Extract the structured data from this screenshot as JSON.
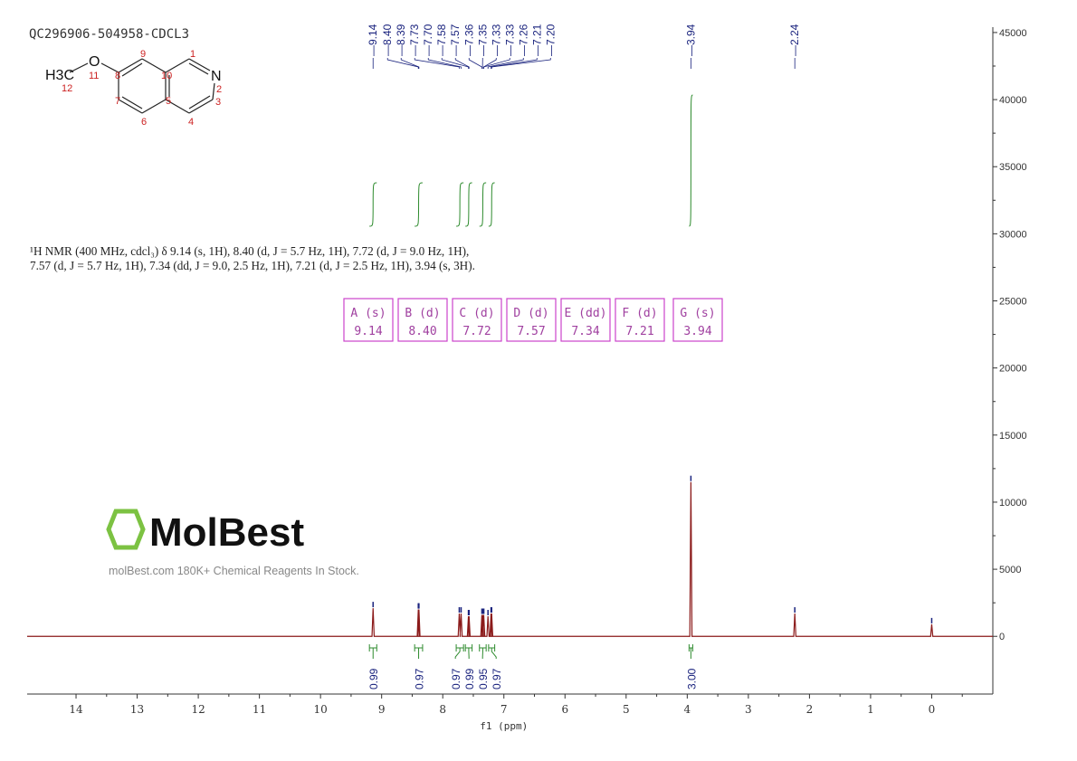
{
  "title": "QC296906-504958-CDCL3",
  "description": [
    "¹H NMR (400 MHz, cdcl₃) δ 9.14 (s, 1H), 8.40 (d, J = 5.7 Hz, 1H), 7.72 (d, J = 9.0 Hz, 1H),",
    "7.57 (d, J = 5.7 Hz, 1H), 7.34 (dd, J = 9.0, 2.5 Hz, 1H), 7.21 (d, J = 2.5 Hz, 1H), 3.94 (s, 3H)."
  ],
  "structure": {
    "atoms": [
      "H3C",
      "O",
      "N"
    ],
    "numbers": [
      "1",
      "2",
      "3",
      "4",
      "5",
      "6",
      "7",
      "8",
      "9",
      "10",
      "11",
      "12"
    ]
  },
  "watermark": {
    "logo_text": "MolBest",
    "tagline": "molBest.com 180K+ Chemical Reagents In Stock."
  },
  "colors": {
    "spectrum": "#8b1a1a",
    "peak_labels": "#1a237e",
    "integrals": "#2e8b2e",
    "multiplet_boxes": "#cc44cc",
    "axis": "#333333"
  },
  "chart_data": {
    "type": "line",
    "xlabel": "f1 (ppm)",
    "ylabel": "",
    "xlim": [
      14.8,
      -1.0
    ],
    "ylim": [
      -4300,
      45400
    ],
    "x_reversed": true,
    "x_ticks": [
      14,
      13,
      12,
      11,
      10,
      9,
      8,
      7,
      6,
      5,
      4,
      3,
      2,
      1,
      0
    ],
    "y_ticks": [
      0,
      5000,
      10000,
      15000,
      20000,
      25000,
      30000,
      35000,
      40000,
      45000
    ],
    "y_axis_side": "right",
    "grid": false,
    "peaks": [
      {
        "ppm": 9.14,
        "intensity": 2100
      },
      {
        "ppm": 8.4,
        "intensity": 2000
      },
      {
        "ppm": 8.39,
        "intensity": 2000
      },
      {
        "ppm": 7.73,
        "intensity": 1700
      },
      {
        "ppm": 7.7,
        "intensity": 1700
      },
      {
        "ppm": 7.58,
        "intensity": 1500
      },
      {
        "ppm": 7.57,
        "intensity": 1500
      },
      {
        "ppm": 7.36,
        "intensity": 1600
      },
      {
        "ppm": 7.35,
        "intensity": 1600
      },
      {
        "ppm": 7.33,
        "intensity": 1600
      },
      {
        "ppm": 7.33,
        "intensity": 1600
      },
      {
        "ppm": 7.26,
        "intensity": 1500
      },
      {
        "ppm": 7.21,
        "intensity": 1700
      },
      {
        "ppm": 7.2,
        "intensity": 1700
      },
      {
        "ppm": 3.94,
        "intensity": 11500
      },
      {
        "ppm": 2.24,
        "intensity": 1700
      },
      {
        "ppm": 0.0,
        "intensity": 900
      }
    ],
    "peak_labels": [
      "9.14",
      "8.40",
      "8.39",
      "7.73",
      "7.70",
      "7.58",
      "7.57",
      "7.36",
      "7.35",
      "7.33",
      "7.33",
      "7.26",
      "7.21",
      "7.20",
      "3.94",
      "2.24"
    ],
    "integrals": [
      {
        "from": 9.2,
        "to": 9.08,
        "value": "0.99"
      },
      {
        "from": 8.46,
        "to": 8.33,
        "value": "0.97"
      },
      {
        "from": 7.78,
        "to": 7.66,
        "value": "0.97"
      },
      {
        "from": 7.63,
        "to": 7.52,
        "value": "0.99"
      },
      {
        "from": 7.4,
        "to": 7.29,
        "value": "0.95"
      },
      {
        "from": 7.25,
        "to": 7.15,
        "value": "0.97"
      },
      {
        "from": 3.97,
        "to": 3.91,
        "value": "3.00"
      }
    ],
    "multiplets": [
      {
        "label": "A (s)",
        "shift": "9.14"
      },
      {
        "label": "B (d)",
        "shift": "8.40"
      },
      {
        "label": "C (d)",
        "shift": "7.72"
      },
      {
        "label": "D (d)",
        "shift": "7.57"
      },
      {
        "label": "E (dd)",
        "shift": "7.34"
      },
      {
        "label": "F (d)",
        "shift": "7.21"
      },
      {
        "label": "G (s)",
        "shift": "3.94"
      }
    ]
  }
}
